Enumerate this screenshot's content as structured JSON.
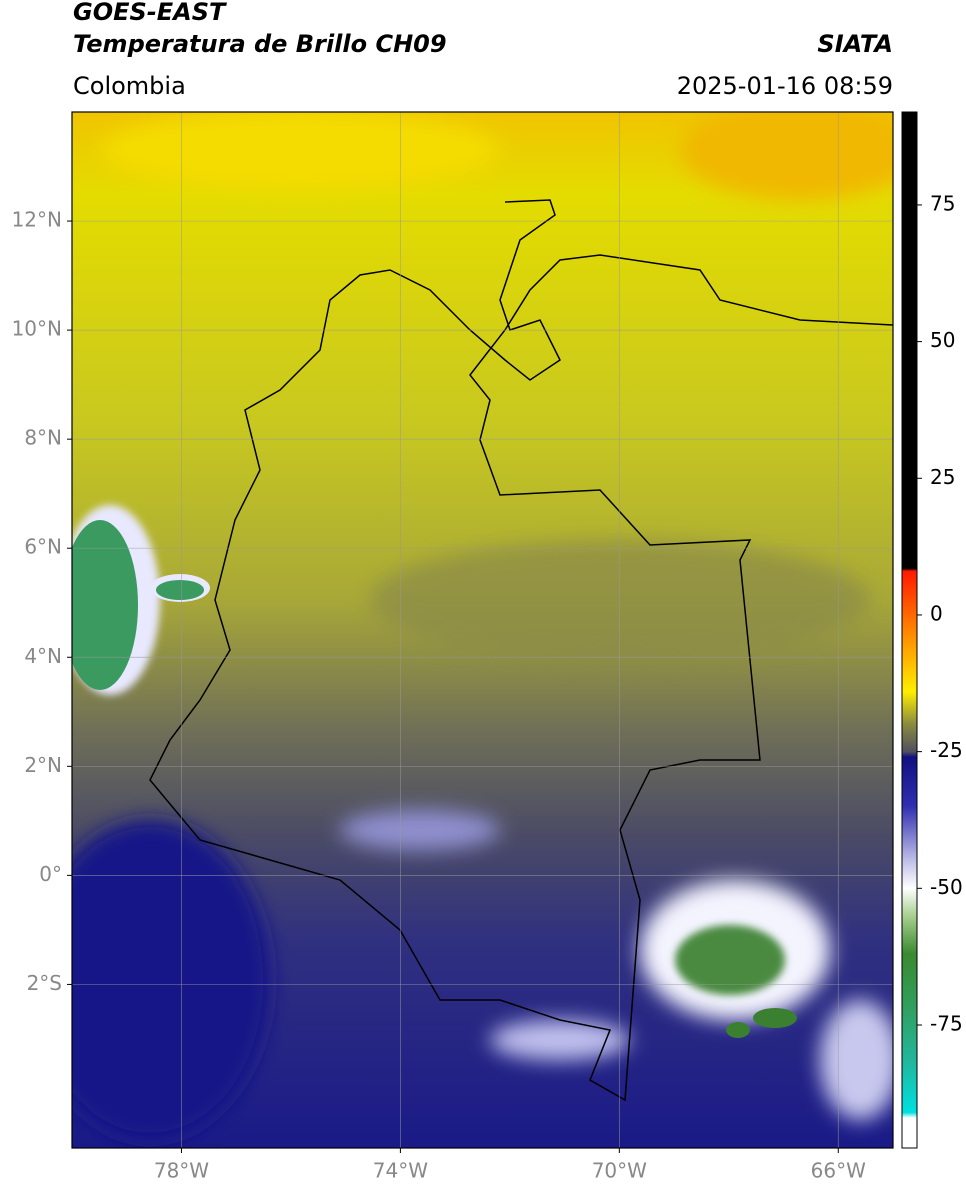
{
  "header": {
    "title": "GOES-EAST",
    "subtitle": "Temperatura de Brillo CH09",
    "source": "SIATA",
    "region": "Colombia",
    "datetime": "2025-01-16 08:59"
  },
  "map": {
    "lon_range": [
      -80,
      -65
    ],
    "lat_range": [
      -5,
      14
    ],
    "lon_ticks": [
      {
        "value": -78,
        "label": "78°W"
      },
      {
        "value": -74,
        "label": "74°W"
      },
      {
        "value": -70,
        "label": "70°W"
      },
      {
        "value": -66,
        "label": "66°W"
      }
    ],
    "lat_ticks": [
      {
        "value": 12,
        "label": "12°N"
      },
      {
        "value": 10,
        "label": "10°N"
      },
      {
        "value": 8,
        "label": "8°N"
      },
      {
        "value": 6,
        "label": "6°N"
      },
      {
        "value": 4,
        "label": "4°N"
      },
      {
        "value": 2,
        "label": "2°N"
      },
      {
        "value": 0,
        "label": "0°"
      },
      {
        "value": -2,
        "label": "2°S"
      }
    ]
  },
  "colorbar": {
    "range": [
      -97.5,
      92
    ],
    "ticks": [
      75,
      50,
      25,
      0,
      -25,
      -50,
      -75
    ],
    "colormap": [
      {
        "value": 92,
        "color": "#000000"
      },
      {
        "value": 8.5,
        "color": "#000000"
      },
      {
        "value": 8,
        "color": "#ff1a00"
      },
      {
        "value": -5,
        "color": "#ff9900"
      },
      {
        "value": -14,
        "color": "#ffee00"
      },
      {
        "value": -20,
        "color": "#8a8a40"
      },
      {
        "value": -25,
        "color": "#505060"
      },
      {
        "value": -26,
        "color": "#101080"
      },
      {
        "value": -35,
        "color": "#3030b0"
      },
      {
        "value": -45,
        "color": "#c0c0e8"
      },
      {
        "value": -50,
        "color": "#ffffff"
      },
      {
        "value": -55,
        "color": "#a8d090"
      },
      {
        "value": -62,
        "color": "#3a8a30"
      },
      {
        "value": -72,
        "color": "#30a060"
      },
      {
        "value": -82,
        "color": "#20b8a0"
      },
      {
        "value": -91,
        "color": "#00e0e0"
      },
      {
        "value": -92,
        "color": "#ffffff"
      },
      {
        "value": -97.5,
        "color": "#ffffff"
      }
    ]
  }
}
